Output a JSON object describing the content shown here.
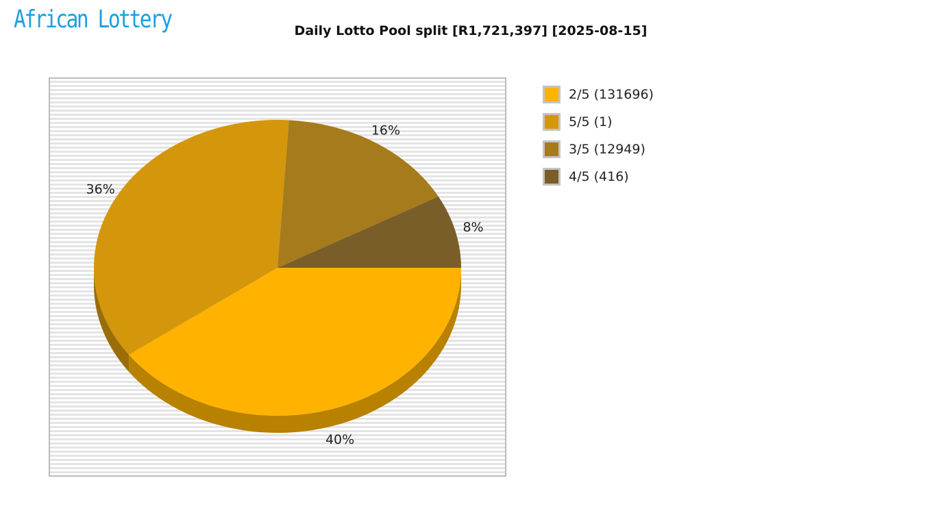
{
  "logo": {
    "text": "African Lottery"
  },
  "chart_data": {
    "type": "pie",
    "title": "Daily Lotto Pool split [R1,721,397] [2025-08-15]",
    "legend_position": "right",
    "slices": [
      {
        "label": "2/5 (131696)",
        "percent": 40,
        "color": "#ffb300"
      },
      {
        "label": "5/5 (1)",
        "percent": 36,
        "color": "#d4970b"
      },
      {
        "label": "3/5 (12949)",
        "percent": 16,
        "color": "#a57b1c"
      },
      {
        "label": "4/5 (416)",
        "percent": 8,
        "color": "#7a5e2a"
      }
    ],
    "data_labels": [
      "40%",
      "36%",
      "16%",
      "8%"
    ]
  }
}
